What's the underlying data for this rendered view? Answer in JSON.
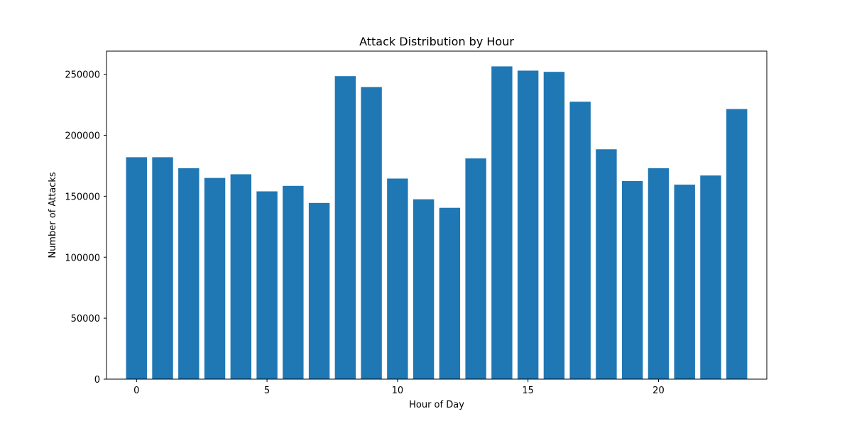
{
  "chart_data": {
    "type": "bar",
    "title": "Attack Distribution by Hour",
    "xlabel": "Hour of Day",
    "ylabel": "Number of Attacks",
    "x": [
      0,
      1,
      2,
      3,
      4,
      5,
      6,
      7,
      8,
      9,
      10,
      11,
      12,
      13,
      14,
      15,
      16,
      17,
      18,
      19,
      20,
      21,
      22,
      23
    ],
    "values": [
      182000,
      182000,
      173000,
      165000,
      168000,
      154000,
      158500,
      144500,
      248500,
      239500,
      164500,
      147500,
      140500,
      181000,
      256500,
      253000,
      252000,
      227500,
      188500,
      162500,
      173000,
      159500,
      167000,
      221500
    ],
    "xlim": [
      -1.15,
      24.15
    ],
    "ylim": [
      0,
      269000
    ],
    "xticks": [
      0,
      5,
      10,
      15,
      20
    ],
    "yticks": [
      0,
      50000,
      100000,
      150000,
      200000,
      250000
    ],
    "bar_color": "#1f77b4",
    "grid": false,
    "legend": "none"
  }
}
